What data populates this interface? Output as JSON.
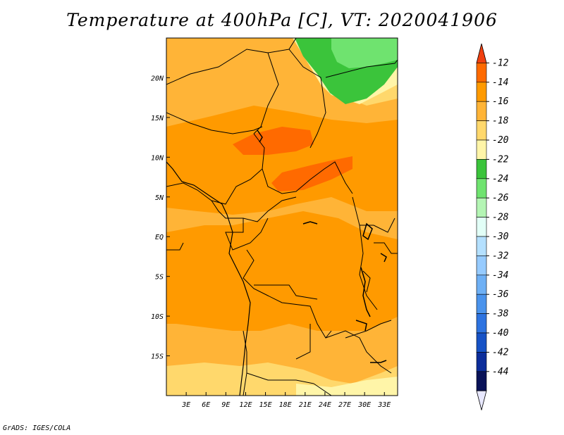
{
  "title": "Temperature at 400hPa [C], VT: 2020041906",
  "credit": "GrADS: IGES/COLA",
  "map": {
    "region": "Central Africa",
    "lon_range": [
      0,
      35
    ],
    "lat_range": [
      -20,
      25
    ],
    "lon_ticks": [
      "3E",
      "6E",
      "9E",
      "12E",
      "15E",
      "18E",
      "21E",
      "24E",
      "27E",
      "30E",
      "33E"
    ],
    "lat_ticks": [
      "20N",
      "15N",
      "10N",
      "5N",
      "EQ",
      "5S",
      "10S",
      "15S"
    ]
  },
  "colorbar": {
    "labels": [
      "-12",
      "-14",
      "-16",
      "-18",
      "-20",
      "-22",
      "-24",
      "-26",
      "-28",
      "-30",
      "-32",
      "-34",
      "-36",
      "-38",
      "-40",
      "-42",
      "-44"
    ],
    "colors": [
      "#f04010",
      "#ff6a00",
      "#ff9a00",
      "#ffb437",
      "#ffd86c",
      "#fff5a8",
      "#3bc43b",
      "#6fe36f",
      "#b4f5b4",
      "#e2fff7",
      "#b4e0ff",
      "#96cbff",
      "#6eb0f5",
      "#4a93ec",
      "#2d73e0",
      "#1652c6",
      "#0c2d9a",
      "#091258",
      "#e8e8ff"
    ]
  }
}
